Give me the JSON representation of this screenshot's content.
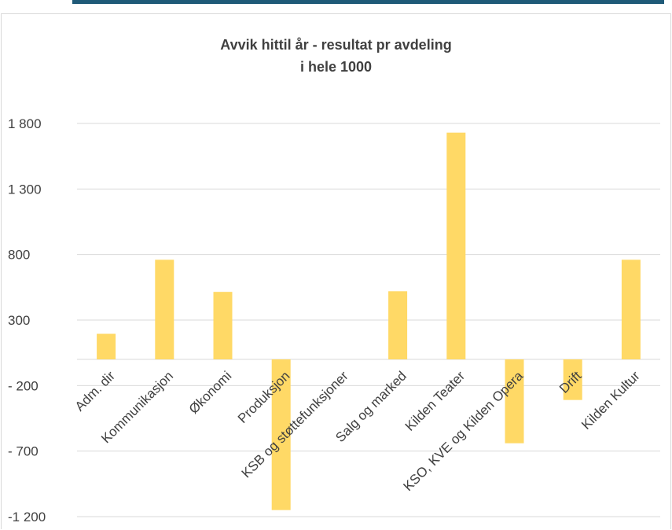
{
  "chart_data": {
    "type": "bar",
    "title_lines": [
      "Avvik hittil år - resultat pr avdeling",
      "i hele 1000"
    ],
    "categories": [
      "Adm. dir",
      "Kommunikasjon",
      "Økonomi",
      "Produksjon",
      "KSB og støttefunksjoner",
      "Salg og marked",
      "Kilden Teater",
      "KSO, KVE og Kilden Opera",
      "Drift",
      "Kilden Kultur"
    ],
    "values": [
      195,
      760,
      515,
      -1150,
      0,
      520,
      1730,
      -640,
      -310,
      760
    ],
    "ylim": [
      -1200,
      1800
    ],
    "yticks": [
      1800,
      1300,
      800,
      300,
      -200,
      -700,
      -1200
    ],
    "ytick_labels": [
      "1 800",
      "1 300",
      "800",
      "300",
      "- 200",
      "- 700",
      "-1 200"
    ],
    "grid": true,
    "bar_color": "#ffd966",
    "grid_color": "#d9d9d9",
    "text_color": "#404040"
  }
}
